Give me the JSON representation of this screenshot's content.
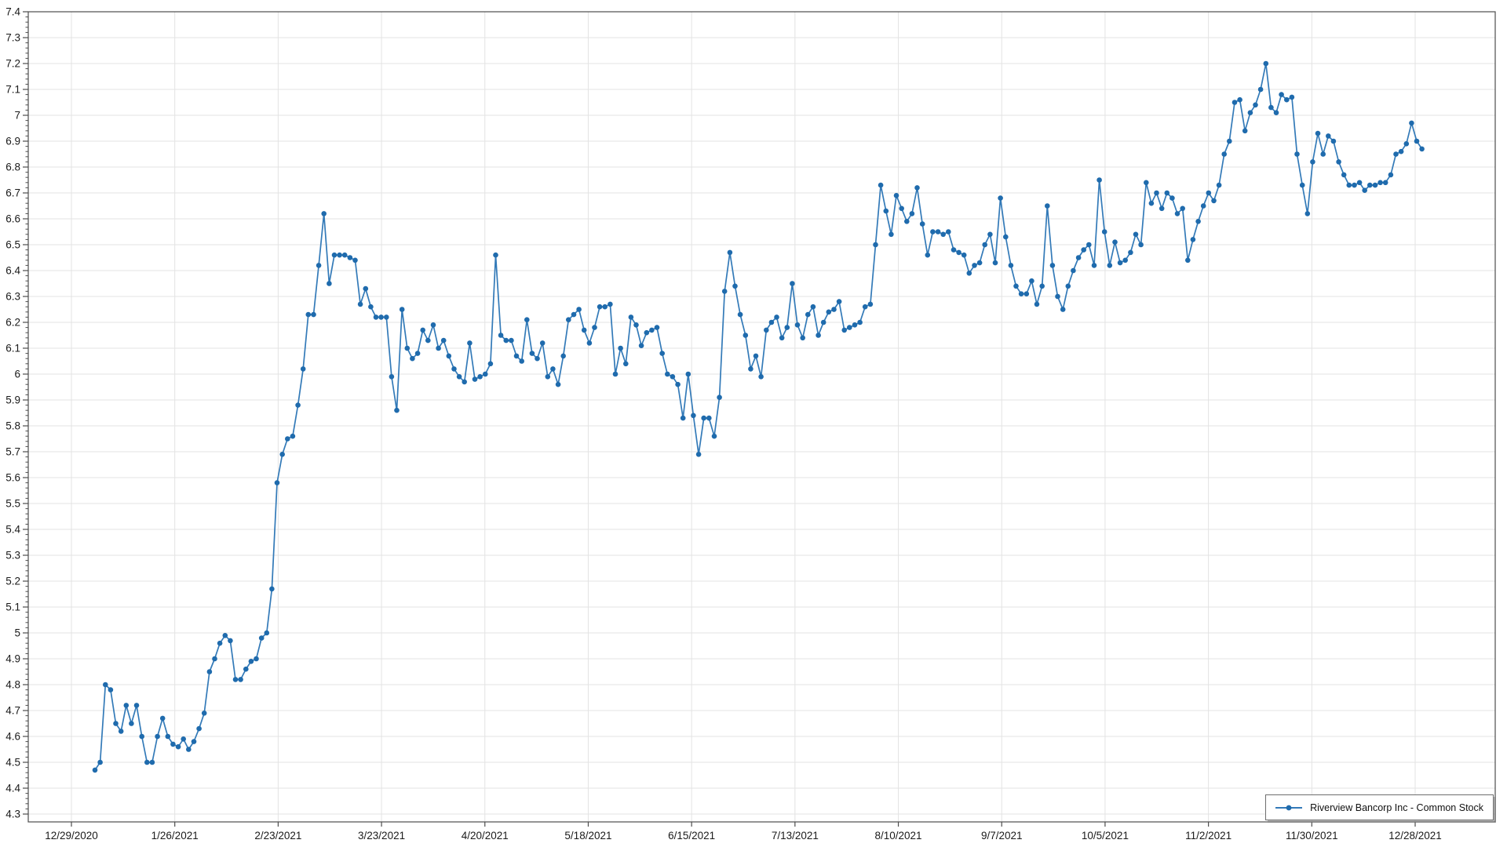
{
  "chart_data": {
    "type": "line",
    "title": "",
    "xlabel": "",
    "ylabel": "",
    "grid": true,
    "legend_position": "bottom-right",
    "x_axis": {
      "tick_labels": [
        "12/29/2020",
        "1/26/2021",
        "2/23/2021",
        "3/23/2021",
        "4/20/2021",
        "5/18/2021",
        "6/15/2021",
        "7/13/2021",
        "8/10/2021",
        "9/7/2021",
        "10/5/2021",
        "11/2/2021",
        "11/30/2021",
        "12/28/2021"
      ]
    },
    "y_axis": {
      "min": 4.3,
      "max": 7.4,
      "step": 0.1,
      "tick_labels": [
        "7.4",
        "7.3",
        "7.2",
        "7.1",
        "7",
        "6.9",
        "6.8",
        "6.7",
        "6.6",
        "6.5",
        "6.4",
        "6.3",
        "6.2",
        "6.1",
        "6",
        "5.9",
        "5.8",
        "5.7",
        "5.6",
        "5.5",
        "5.4",
        "5.3",
        "5.2",
        "5.1",
        "5",
        "4.9",
        "4.8",
        "4.7",
        "4.6",
        "4.5",
        "4.4",
        "4.3"
      ]
    },
    "series": [
      {
        "name": "Riverview Bancorp Inc - Common Stock",
        "line_color": "#337ab8",
        "marker_color": "#1f6bad",
        "values": [
          4.47,
          4.5,
          4.8,
          4.78,
          4.65,
          4.62,
          4.72,
          4.65,
          4.72,
          4.6,
          4.5,
          4.5,
          4.6,
          4.67,
          4.6,
          4.57,
          4.56,
          4.59,
          4.55,
          4.58,
          4.63,
          4.69,
          4.85,
          4.9,
          4.96,
          4.99,
          4.97,
          4.82,
          4.82,
          4.86,
          4.89,
          4.9,
          4.98,
          5.0,
          5.17,
          5.58,
          5.69,
          5.75,
          5.76,
          5.88,
          6.02,
          6.23,
          6.23,
          6.42,
          6.62,
          6.35,
          6.46,
          6.46,
          6.46,
          6.45,
          6.44,
          6.27,
          6.33,
          6.26,
          6.22,
          6.22,
          6.22,
          5.99,
          5.86,
          6.25,
          6.1,
          6.06,
          6.08,
          6.17,
          6.13,
          6.19,
          6.1,
          6.13,
          6.07,
          6.02,
          5.99,
          5.97,
          6.12,
          5.98,
          5.99,
          6.0,
          6.04,
          6.46,
          6.15,
          6.13,
          6.13,
          6.07,
          6.05,
          6.21,
          6.08,
          6.06,
          6.12,
          5.99,
          6.02,
          5.96,
          6.07,
          6.21,
          6.23,
          6.25,
          6.17,
          6.12,
          6.18,
          6.26,
          6.26,
          6.27,
          6.0,
          6.1,
          6.04,
          6.22,
          6.19,
          6.11,
          6.16,
          6.17,
          6.18,
          6.08,
          6.0,
          5.99,
          5.96,
          5.83,
          6.0,
          5.84,
          5.69,
          5.83,
          5.83,
          5.76,
          5.91,
          6.32,
          6.47,
          6.34,
          6.23,
          6.15,
          6.02,
          6.07,
          5.99,
          6.17,
          6.2,
          6.22,
          6.14,
          6.18,
          6.35,
          6.19,
          6.14,
          6.23,
          6.26,
          6.15,
          6.2,
          6.24,
          6.25,
          6.28,
          6.17,
          6.18,
          6.19,
          6.2,
          6.26,
          6.27,
          6.5,
          6.73,
          6.63,
          6.54,
          6.69,
          6.64,
          6.59,
          6.62,
          6.72,
          6.58,
          6.46,
          6.55,
          6.55,
          6.54,
          6.55,
          6.48,
          6.47,
          6.46,
          6.39,
          6.42,
          6.43,
          6.5,
          6.54,
          6.43,
          6.68,
          6.53,
          6.42,
          6.34,
          6.31,
          6.31,
          6.36,
          6.27,
          6.34,
          6.65,
          6.42,
          6.3,
          6.25,
          6.34,
          6.4,
          6.45,
          6.48,
          6.5,
          6.42,
          6.75,
          6.55,
          6.42,
          6.51,
          6.43,
          6.44,
          6.47,
          6.54,
          6.5,
          6.74,
          6.66,
          6.7,
          6.64,
          6.7,
          6.68,
          6.62,
          6.64,
          6.44,
          6.52,
          6.59,
          6.65,
          6.7,
          6.67,
          6.73,
          6.85,
          6.9,
          7.05,
          7.06,
          6.94,
          7.01,
          7.04,
          7.1,
          7.2,
          7.03,
          7.01,
          7.08,
          7.06,
          7.07,
          6.85,
          6.73,
          6.62,
          6.82,
          6.93,
          6.85,
          6.92,
          6.9,
          6.82,
          6.77,
          6.73,
          6.73,
          6.74,
          6.71,
          6.73,
          6.73,
          6.74,
          6.74,
          6.77,
          6.85,
          6.86,
          6.89,
          6.97,
          6.9,
          6.87
        ]
      }
    ],
    "colors": {
      "grid": "#e3e3e3",
      "axis": "#4d4d4d",
      "tick_label": "#1a1a1a"
    }
  },
  "legend": {
    "label": "Riverview Bancorp Inc - Common Stock"
  }
}
